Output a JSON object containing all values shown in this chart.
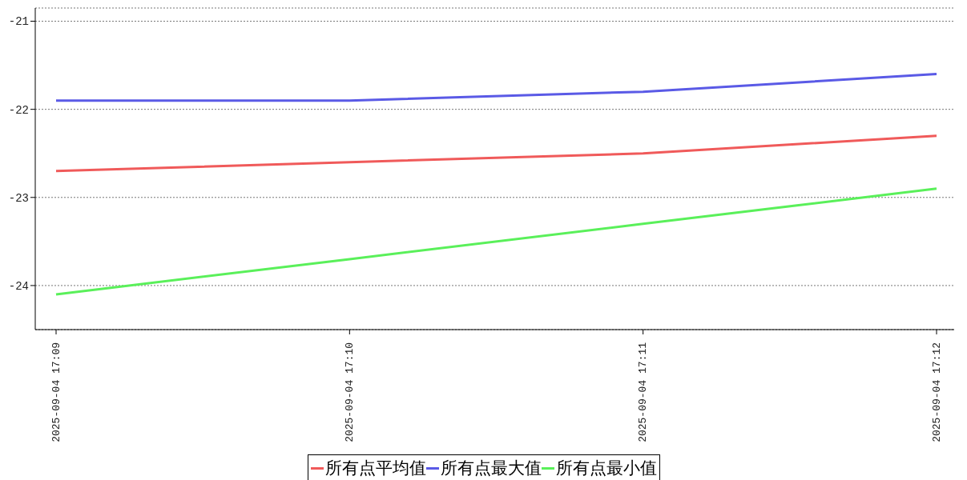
{
  "chart_data": {
    "type": "line",
    "categories": [
      "2025-09-04 17:09",
      "2025-09-04 17:10",
      "2025-09-04 17:11",
      "2025-09-04 17:12"
    ],
    "series": [
      {
        "name": "所有点平均值",
        "color": "#f05a5a",
        "values": [
          -22.7,
          -22.6,
          -22.5,
          -22.3
        ]
      },
      {
        "name": "所有点最大值",
        "color": "#5a5ae6",
        "values": [
          -21.9,
          -21.9,
          -21.8,
          -21.6
        ]
      },
      {
        "name": "所有点最小值",
        "color": "#5af05a",
        "values": [
          -24.1,
          -23.7,
          -23.3,
          -22.9
        ]
      }
    ],
    "ylim": [
      -24.5,
      -20.85
    ],
    "yticks": [
      -24,
      -23,
      -22,
      -21
    ],
    "grid": "y",
    "legend": "bottom",
    "marker": "none",
    "line_style": "solid"
  }
}
